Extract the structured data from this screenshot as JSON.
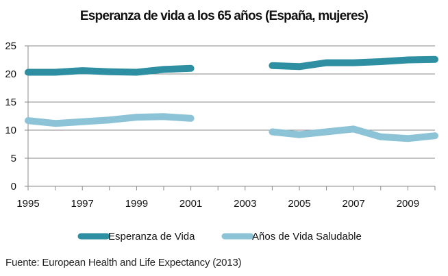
{
  "chart_data": {
    "type": "line",
    "title": "Esperanza de vida a los 65 años (España, mujeres)",
    "xlabel": "",
    "ylabel": "",
    "xlim": [
      1995,
      2010
    ],
    "ylim": [
      0,
      25
    ],
    "x_ticks": [
      "1995",
      "1997",
      "1999",
      "2001",
      "2003",
      "2005",
      "2007",
      "2009"
    ],
    "y_ticks": [
      "0",
      "5",
      "10",
      "15",
      "20",
      "25"
    ],
    "grid": "horizontal",
    "legend_position": "bottom",
    "series": [
      {
        "name": "Esperanza de Vida",
        "color": "#2E8FA3",
        "segments": [
          {
            "x": [
              1995,
              1996,
              1997,
              1998,
              1999,
              2000,
              2001
            ],
            "y": [
              20.3,
              20.3,
              20.6,
              20.4,
              20.3,
              20.8,
              21.0
            ]
          },
          {
            "x": [
              2004,
              2005,
              2006,
              2007,
              2008,
              2009,
              2010
            ],
            "y": [
              21.5,
              21.3,
              22.0,
              22.0,
              22.2,
              22.5,
              22.6
            ]
          }
        ]
      },
      {
        "name": "Años de Vida Saludable",
        "color": "#8CC3D6",
        "segments": [
          {
            "x": [
              1995,
              1996,
              1997,
              1998,
              1999,
              2000,
              2001
            ],
            "y": [
              11.7,
              11.2,
              11.5,
              11.8,
              12.3,
              12.4,
              12.1
            ]
          },
          {
            "x": [
              2004,
              2005,
              2006,
              2007,
              2008,
              2009,
              2010
            ],
            "y": [
              9.7,
              9.2,
              9.7,
              10.2,
              8.8,
              8.5,
              9.0
            ]
          }
        ]
      }
    ]
  },
  "source_text": "Fuente: European Health and Life Expectancy (2013)"
}
